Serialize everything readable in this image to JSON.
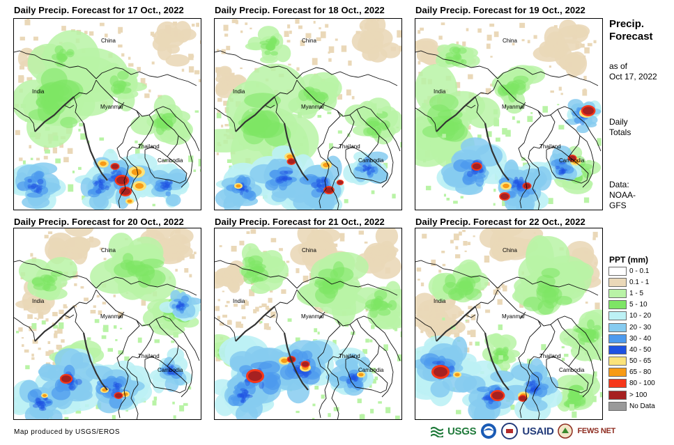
{
  "panels": [
    {
      "title": "Daily Precip. Forecast for 17 Oct., 2022",
      "day": "17 Oct."
    },
    {
      "title": "Daily Precip. Forecast for 18 Oct., 2022",
      "day": "18 Oct."
    },
    {
      "title": "Daily Precip. Forecast for 19 Oct., 2022",
      "day": "19 Oct."
    },
    {
      "title": "Daily Precip. Forecast for 20 Oct., 2022",
      "day": "20 Oct."
    },
    {
      "title": "Daily Precip. Forecast for 21 Oct., 2022",
      "day": "21 Oct."
    },
    {
      "title": "Daily Precip. Forecast for 22 Oct., 2022",
      "day": "22 Oct."
    }
  ],
  "map_labels": {
    "china": "China",
    "india": "India",
    "myanmar": "Myanmar",
    "thailand": "Thailand",
    "cambodia": "Cambodia"
  },
  "sidebar": {
    "title_line1": "Precip.",
    "title_line2": "Forecast",
    "asof_line1": "as of",
    "asof_line2": "Oct 17, 2022",
    "daily_line1": "Daily",
    "daily_line2": "Totals",
    "data_line1": "Data:",
    "data_line2": "NOAA-",
    "data_line3": "GFS"
  },
  "legend": {
    "title": "PPT (mm)",
    "items": [
      {
        "label": "0 - 0.1",
        "color": "#ffffff"
      },
      {
        "label": "0.1 - 1",
        "color": "#ead8b8"
      },
      {
        "label": "1 - 5",
        "color": "#b9f3a6"
      },
      {
        "label": "5 - 10",
        "color": "#7ee565"
      },
      {
        "label": "10 - 20",
        "color": "#bdf1f5"
      },
      {
        "label": "20 - 30",
        "color": "#86cbf0"
      },
      {
        "label": "30 - 40",
        "color": "#4d9aee"
      },
      {
        "label": "40 - 50",
        "color": "#1f52e2"
      },
      {
        "label": "50 - 65",
        "color": "#fbe37a"
      },
      {
        "label": "65 - 80",
        "color": "#f79a15"
      },
      {
        "label": "80 - 100",
        "color": "#f6371a"
      },
      {
        "label": "> 100",
        "color": "#a62121"
      },
      {
        "label": "No Data",
        "color": "#9a9a9a"
      }
    ]
  },
  "credit": "Map produced by USGS/EROS",
  "logos": {
    "usgs": "USGS",
    "usaid": "USAID",
    "fewsnet": "FEWS NET"
  }
}
